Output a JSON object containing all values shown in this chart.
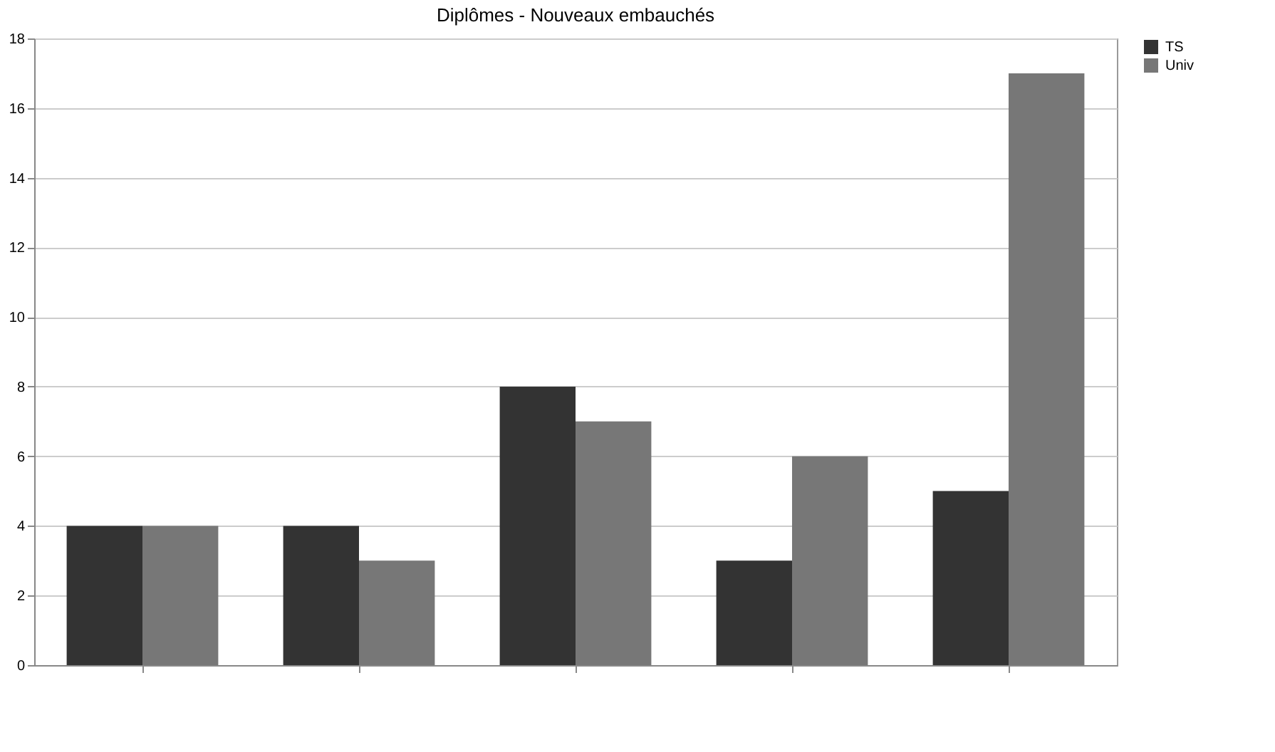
{
  "chart_data": {
    "type": "bar",
    "title": "Diplômes - Nouveaux embauchés",
    "categories": [
      null,
      null,
      null,
      null,
      null
    ],
    "series": [
      {
        "name": "TS",
        "color": "#333333",
        "values": [
          4,
          4,
          8,
          3,
          5
        ]
      },
      {
        "name": "Univ",
        "color": "#777777",
        "values": [
          4,
          3,
          7,
          6,
          17
        ]
      }
    ],
    "ylim": [
      0,
      18
    ],
    "yticks": [
      0,
      2,
      4,
      6,
      8,
      10,
      12,
      14,
      16,
      18
    ],
    "grid": "y",
    "legend": "right"
  }
}
